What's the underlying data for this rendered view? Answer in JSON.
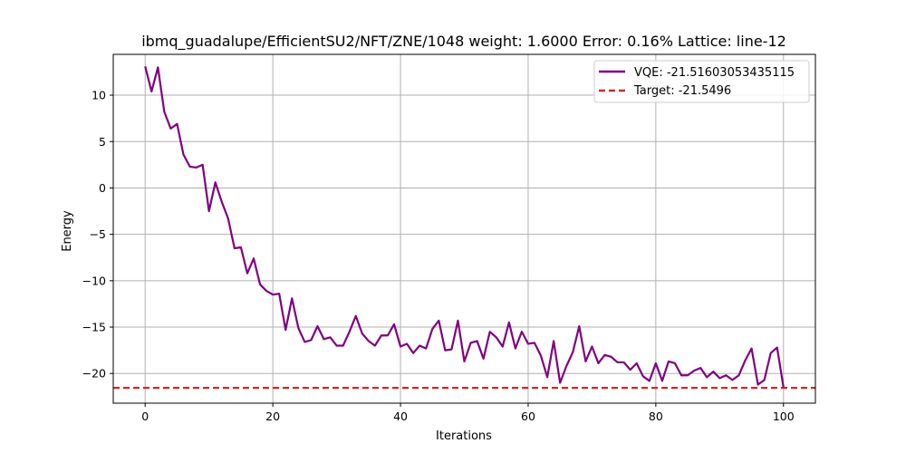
{
  "chart_data": {
    "type": "line",
    "title": "ibmq_guadalupe/EfficientSU2/NFT/ZNE/1048 weight: 1.6000 Error: 0.16% Lattice: line-12",
    "xlabel": "Iterations",
    "ylabel": "Energy",
    "xlim": [
      -5,
      105
    ],
    "ylim": [
      -23.2,
      14.4
    ],
    "xticks": [
      0,
      20,
      40,
      60,
      80,
      100
    ],
    "yticks": [
      -20,
      -15,
      -10,
      -5,
      0,
      5,
      10
    ],
    "grid": true,
    "legend_position": "top-right",
    "series": [
      {
        "name": "VQE: -21.51603053435115",
        "color": "#800080",
        "style": "solid",
        "x": [
          0,
          1,
          2,
          3,
          4,
          5,
          6,
          7,
          8,
          9,
          10,
          11,
          12,
          13,
          14,
          15,
          16,
          17,
          18,
          19,
          20,
          21,
          22,
          23,
          24,
          25,
          26,
          27,
          28,
          29,
          30,
          31,
          32,
          33,
          34,
          35,
          36,
          37,
          38,
          39,
          40,
          41,
          42,
          43,
          44,
          45,
          46,
          47,
          48,
          49,
          50,
          51,
          52,
          53,
          54,
          55,
          56,
          57,
          58,
          59,
          60,
          61,
          62,
          63,
          64,
          65,
          66,
          67,
          68,
          69,
          70,
          71,
          72,
          73,
          74,
          75,
          76,
          77,
          78,
          79,
          80,
          81,
          82,
          83,
          84,
          85,
          86,
          87,
          88,
          89,
          90,
          91,
          92,
          93,
          94,
          95,
          96,
          97,
          98,
          99,
          100
        ],
        "y": [
          13.1,
          10.4,
          13.0,
          8.2,
          6.4,
          6.9,
          3.6,
          2.3,
          2.2,
          2.5,
          -2.5,
          0.6,
          -1.5,
          -3.3,
          -6.5,
          -6.4,
          -9.2,
          -7.6,
          -10.4,
          -11.1,
          -11.5,
          -11.4,
          -15.3,
          -11.9,
          -15.1,
          -16.6,
          -16.4,
          -14.9,
          -16.3,
          -16.1,
          -17.0,
          -17.0,
          -15.5,
          -13.8,
          -15.7,
          -16.5,
          -17.0,
          -15.9,
          -15.9,
          -14.7,
          -17.1,
          -16.8,
          -17.8,
          -17.0,
          -17.3,
          -15.2,
          -14.3,
          -17.5,
          -17.4,
          -14.3,
          -18.7,
          -16.7,
          -16.5,
          -18.4,
          -15.5,
          -16.1,
          -17.1,
          -14.5,
          -17.3,
          -15.5,
          -16.8,
          -16.7,
          -18.1,
          -20.4,
          -16.5,
          -21.0,
          -19.2,
          -17.7,
          -14.9,
          -18.7,
          -17.1,
          -18.9,
          -18.0,
          -18.2,
          -18.8,
          -18.8,
          -19.6,
          -18.9,
          -20.3,
          -20.8,
          -18.9,
          -20.8,
          -18.7,
          -18.9,
          -20.2,
          -20.2,
          -19.7,
          -19.4,
          -20.4,
          -19.8,
          -20.5,
          -20.2,
          -20.7,
          -20.2,
          -18.6,
          -17.3,
          -21.2,
          -20.7,
          -17.8,
          -17.2,
          -21.5
        ]
      },
      {
        "name": "Target: -21.5496",
        "color": "#d62728",
        "style": "dashed",
        "y": -21.5496
      }
    ]
  }
}
